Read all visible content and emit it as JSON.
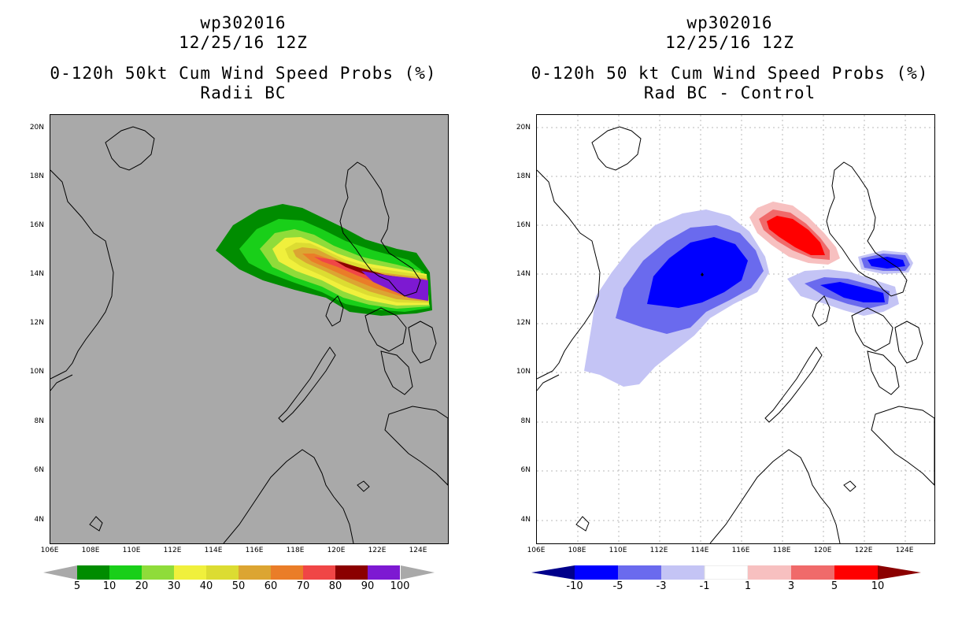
{
  "left": {
    "title_line1": "wp302016",
    "title_line2": "12/25/16 12Z",
    "title_line3": "0-120h 50kt Cum Wind Speed Probs (%)",
    "title_line4": "Radii BC",
    "background_color": "#a9a9a9",
    "colorbar": {
      "colors": [
        "#008c00",
        "#19cf19",
        "#8fdc3a",
        "#f0f03c",
        "#dcdc32",
        "#dca532",
        "#ea7d28",
        "#f04646",
        "#8b0000",
        "#7d19d2"
      ],
      "labels": [
        "5",
        "10",
        "20",
        "30",
        "40",
        "50",
        "60",
        "70",
        "80",
        "90",
        "100"
      ]
    }
  },
  "right": {
    "title_line1": "wp302016",
    "title_line2": "12/25/16 12Z",
    "title_line3": "0-120h 50 kt Cum Wind Speed Probs (%)",
    "title_line4": "Rad BC - Control",
    "background_color": "#ffffff",
    "colorbar": {
      "colors": [
        "#0000ff",
        "#6a6aee",
        "#c4c4f5",
        "#ffffff",
        "#f7c0c0",
        "#f06a6a",
        "#ff0000"
      ],
      "end_left": "#00008b",
      "end_right": "#8b0000",
      "labels": [
        "-10",
        "-5",
        "-3",
        "-1",
        "1",
        "3",
        "5",
        "10"
      ]
    }
  },
  "axes": {
    "lat_labels": [
      "20N",
      "18N",
      "16N",
      "14N",
      "12N",
      "10N",
      "8N",
      "6N",
      "4N"
    ],
    "lon_labels": [
      "106E",
      "108E",
      "110E",
      "112E",
      "114E",
      "116E",
      "118E",
      "120E",
      "122E",
      "124E"
    ]
  }
}
